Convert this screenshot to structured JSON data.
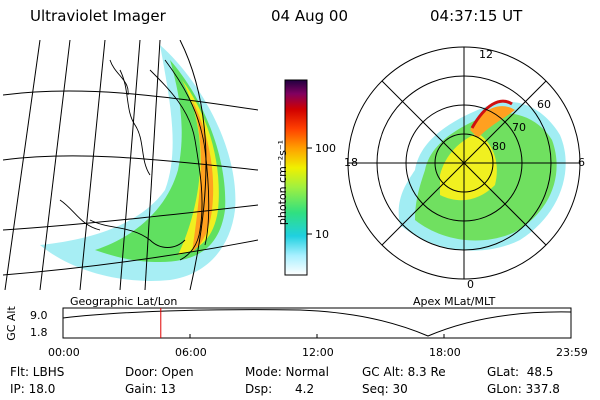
{
  "header": {
    "instrument": "Ultraviolet Imager",
    "date": "04 Aug 00",
    "time": "04:37:15 UT"
  },
  "colorbar": {
    "label": "photon cm⁻²s⁻¹",
    "ticks": [
      "100",
      "10"
    ],
    "colors": [
      "#ffffff",
      "#a8f0ff",
      "#20d0e0",
      "#30e080",
      "#a0f040",
      "#f0f000",
      "#ffa000",
      "#ff4000",
      "#d00000",
      "#800060",
      "#200040"
    ]
  },
  "geo_panel": {
    "label": "Geographic Lat/Lon"
  },
  "polar_panel": {
    "label": "Apex MLat/MLT",
    "mlt_labels": {
      "top": "12",
      "left": "18",
      "right": "6",
      "bottom": "0"
    },
    "mlat_labels": [
      "60",
      "70",
      "80"
    ]
  },
  "timeline": {
    "ylabel": "GC Alt",
    "yticks": [
      "9.0",
      "1.8"
    ],
    "xticks": [
      "00:00",
      "06:00",
      "12:00",
      "18:00",
      "23:59"
    ],
    "marker_hour": 4.62,
    "marker_color": "#e00000"
  },
  "info": {
    "row1": {
      "flt": "Flt: LBHS",
      "door": "Door: Open",
      "mode": "Mode: Normal",
      "gcalt": "GC Alt: 8.3 Re",
      "glat": "GLat:  48.5"
    },
    "row2": {
      "ip": "IP: 18.0",
      "gain": "Gain: 13",
      "dsp": "Dsp:      4.2",
      "seq": "Seq: 30",
      "glon": "GLon: 337.8"
    }
  }
}
